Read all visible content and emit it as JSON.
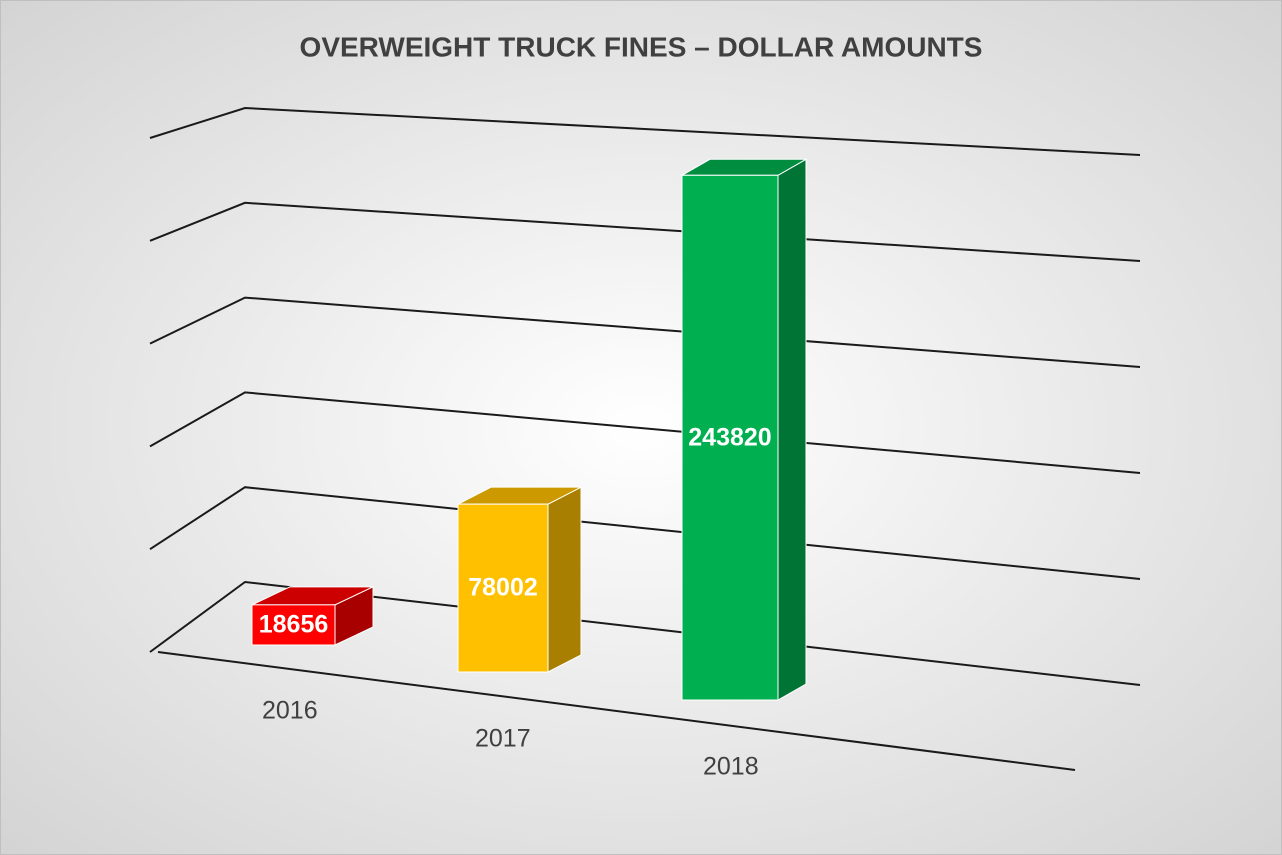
{
  "chart_data": {
    "type": "bar3d",
    "title": "OVERWEIGHT TRUCK FINES – DOLLAR AMOUNTS",
    "categories": [
      "2016",
      "2017",
      "2018"
    ],
    "values": [
      18656,
      78002,
      243820
    ],
    "colors": [
      "#ff0000",
      "#ffc000",
      "#00b050"
    ],
    "ylim": [
      0,
      250000
    ],
    "yticks": [
      0,
      50000,
      100000,
      150000,
      200000,
      250000
    ],
    "grid": true
  }
}
